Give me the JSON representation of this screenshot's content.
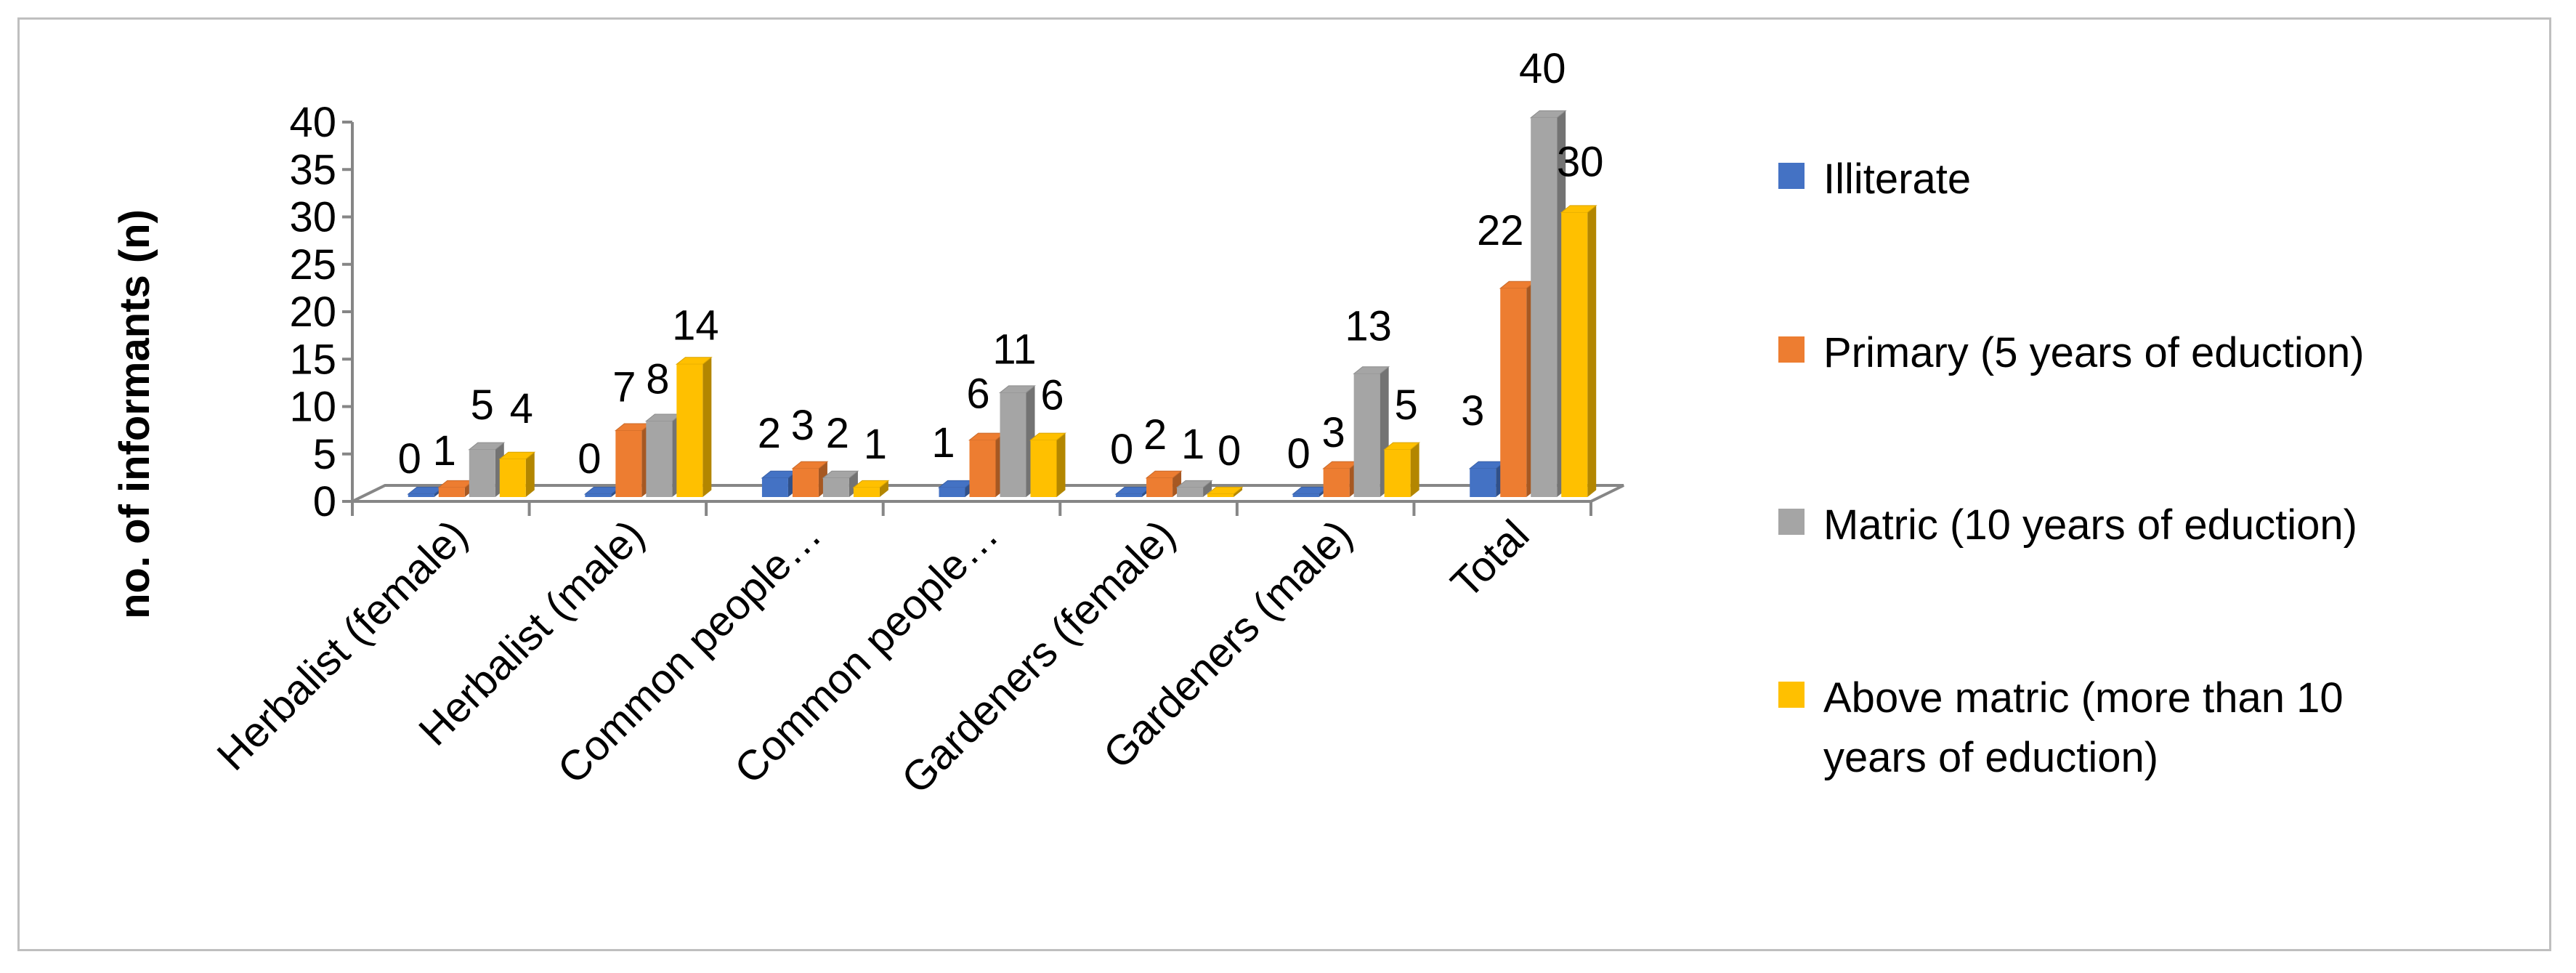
{
  "chart_data": {
    "type": "bar",
    "ylabel": "no. of informants (n)",
    "xlabel": "",
    "ylim": [
      0,
      40
    ],
    "yticks": [
      0,
      5,
      10,
      15,
      20,
      25,
      30,
      35,
      40
    ],
    "categories": [
      "Herbalist  (female)",
      "Herbalist  (male)",
      "Common people…",
      "Common people…",
      "Gardeners (female)",
      "Gardeners (male)",
      "Total"
    ],
    "series": [
      {
        "name": "Illiterate",
        "color": "#4472C4",
        "values": [
          0,
          0,
          2,
          1,
          0,
          0,
          3
        ]
      },
      {
        "name": "Primary (5 years of eduction)",
        "color": "#ED7D31",
        "values": [
          1,
          7,
          3,
          6,
          2,
          3,
          22
        ]
      },
      {
        "name": "Matric (10 years of eduction)",
        "color": "#A5A5A5",
        "values": [
          5,
          8,
          2,
          11,
          1,
          13,
          40
        ]
      },
      {
        "name": "Above matric (more than 10 years of eduction)",
        "color": "#FFC000",
        "values": [
          4,
          14,
          1,
          6,
          0,
          5,
          30
        ]
      }
    ],
    "legend_position": "right",
    "style": "3d-clustered-column",
    "grid": false
  }
}
